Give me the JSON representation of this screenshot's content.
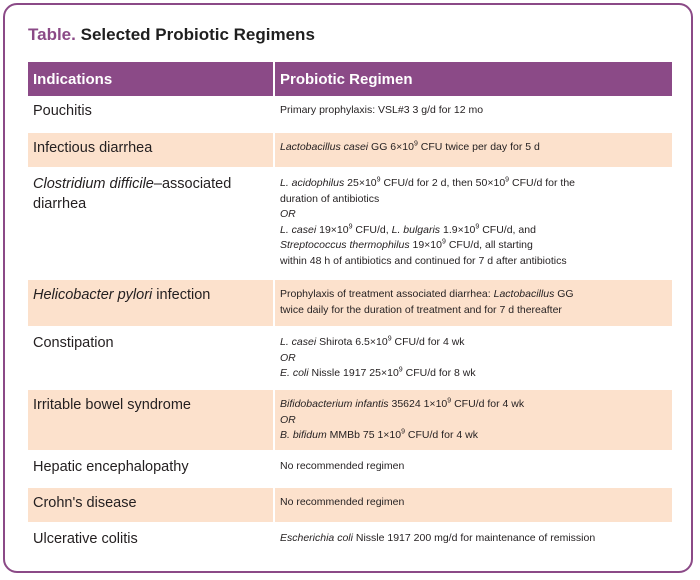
{
  "caption": {
    "label": "Table.",
    "title": "Selected Probiotic Regimens"
  },
  "headers": {
    "indications": "Indications",
    "regimen": "Probiotic Regimen"
  },
  "rows": [
    {
      "indication": [
        {
          "t": "Pouchitis"
        }
      ],
      "regimen": [
        [
          {
            "t": "Primary prophylaxis: VSL#3 3 g/d for 12 mo"
          }
        ]
      ]
    },
    {
      "indication": [
        {
          "t": "Infectious diarrhea"
        }
      ],
      "regimen": [
        [
          {
            "t": "Lactobacillus casei",
            "i": true
          },
          {
            "t": " GG 6×10"
          },
          {
            "t": "9",
            "sup": true
          },
          {
            "t": " CFU twice per day for 5 d"
          }
        ]
      ]
    },
    {
      "indication": [
        {
          "t": "Clostridium difficile",
          "i": true
        },
        {
          "t": "–associated diarrhea"
        }
      ],
      "regimen": [
        [
          {
            "t": "L. acidophilus",
            "i": true
          },
          {
            "t": " 25×10"
          },
          {
            "t": "9",
            "sup": true
          },
          {
            "t": " CFU/d for 2 d, then 50×10"
          },
          {
            "t": "9",
            "sup": true
          },
          {
            "t": " CFU/d for the"
          }
        ],
        [
          {
            "t": "duration of antibiotics"
          }
        ],
        [
          {
            "t": "OR",
            "i": true
          }
        ],
        [
          {
            "t": "L. casei",
            "i": true
          },
          {
            "t": " 19×10"
          },
          {
            "t": "9",
            "sup": true
          },
          {
            "t": " CFU/d, "
          },
          {
            "t": "L. bulgaris",
            "i": true
          },
          {
            "t": " 1.9×10"
          },
          {
            "t": "9",
            "sup": true
          },
          {
            "t": " CFU/d, and"
          }
        ],
        [
          {
            "t": "Streptococcus thermophilus",
            "i": true
          },
          {
            "t": " 19×10"
          },
          {
            "t": "9",
            "sup": true
          },
          {
            "t": " CFU/d, all starting"
          }
        ],
        [
          {
            "t": "within 48 h of antibiotics and continued for 7 d after antibiotics"
          }
        ]
      ]
    },
    {
      "indication": [
        {
          "t": "Helicobacter pylori",
          "i": true
        },
        {
          "t": " infection"
        }
      ],
      "regimen": [
        [
          {
            "t": "Prophylaxis of treatment associated diarrhea: "
          },
          {
            "t": "Lactobacillus",
            "i": true
          },
          {
            "t": " GG"
          }
        ],
        [
          {
            "t": "twice daily for the duration of treatment and for 7 d thereafter"
          }
        ]
      ]
    },
    {
      "indication": [
        {
          "t": "Constipation"
        }
      ],
      "regimen": [
        [
          {
            "t": "L. casei",
            "i": true
          },
          {
            "t": " Shirota 6.5×10"
          },
          {
            "t": "9",
            "sup": true
          },
          {
            "t": " CFU/d for 4 wk"
          }
        ],
        [
          {
            "t": "OR",
            "i": true
          }
        ],
        [
          {
            "t": "E. coli",
            "i": true
          },
          {
            "t": " Nissle 1917 25×10"
          },
          {
            "t": "9",
            "sup": true
          },
          {
            "t": " CFU/d for 8 wk"
          }
        ]
      ]
    },
    {
      "indication": [
        {
          "t": "Irritable bowel syndrome"
        }
      ],
      "regimen": [
        [
          {
            "t": "Bifidobacterium infantis",
            "i": true
          },
          {
            "t": " 35624 1×10"
          },
          {
            "t": "9",
            "sup": true
          },
          {
            "t": " CFU/d for 4 wk"
          }
        ],
        [
          {
            "t": "OR",
            "i": true
          }
        ],
        [
          {
            "t": "B. bifidum",
            "i": true
          },
          {
            "t": " MMBb 75 1×10"
          },
          {
            "t": "9",
            "sup": true
          },
          {
            "t": " CFU/d for 4 wk"
          }
        ]
      ]
    },
    {
      "indication": [
        {
          "t": "Hepatic encephalopathy"
        }
      ],
      "regimen": [
        [
          {
            "t": "No recommended regimen"
          }
        ]
      ]
    },
    {
      "indication": [
        {
          "t": "Crohn's disease"
        }
      ],
      "regimen": [
        [
          {
            "t": "No recommended regimen"
          }
        ]
      ]
    },
    {
      "indication": [
        {
          "t": "Ulcerative colitis"
        }
      ],
      "regimen": [
        [
          {
            "t": "Escherichia coli",
            "i": true
          },
          {
            "t": " Nissle 1917 200 mg/d for maintenance of remission"
          }
        ]
      ]
    }
  ],
  "colors": {
    "accent": "#8b4a87",
    "stripe": "#fce1cc"
  }
}
